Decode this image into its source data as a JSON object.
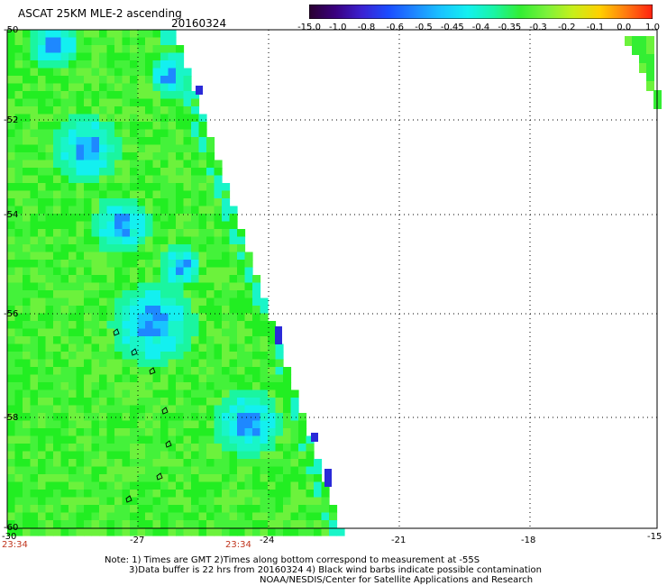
{
  "header": {
    "title": "ASCAT 25KM MLE-2 ascending",
    "date": "20160324"
  },
  "colorbar": {
    "labels": [
      "-15.0",
      "-1.0",
      "-0.8",
      "-0.6",
      "-0.5",
      "-0.45",
      "-0.4",
      "-0.35",
      "-0.3",
      "-0.2",
      "-0.1",
      "0.0",
      "1.0"
    ],
    "colors": [
      "#2a0030",
      "#3a0080",
      "#3b22d2",
      "#1b4dff",
      "#1e88ff",
      "#19c4ff",
      "#13f0f0",
      "#19f5a4",
      "#33ee33",
      "#7cf23b",
      "#c8ef1a",
      "#ffd000",
      "#ff7a10",
      "#ff2010"
    ]
  },
  "axes": {
    "y_ticks": [
      "-50",
      "-52",
      "-54",
      "-56",
      "-58",
      "-60"
    ],
    "x_ticks": [
      "-30",
      "-27",
      "-24",
      "-21",
      "-18",
      "-15"
    ],
    "time_labels": [
      "23:34",
      "23:34"
    ]
  },
  "notes": {
    "line1": "Note: 1) Times are GMT 2)Times along bottom correspond to measurement at -55S",
    "line2": "3)Data buffer is 22 hrs from 20160324 4) Black wind barbs indicate possible contamination",
    "line3": "NOAA/NESDIS/Center for Satellite Applications and Research"
  }
}
